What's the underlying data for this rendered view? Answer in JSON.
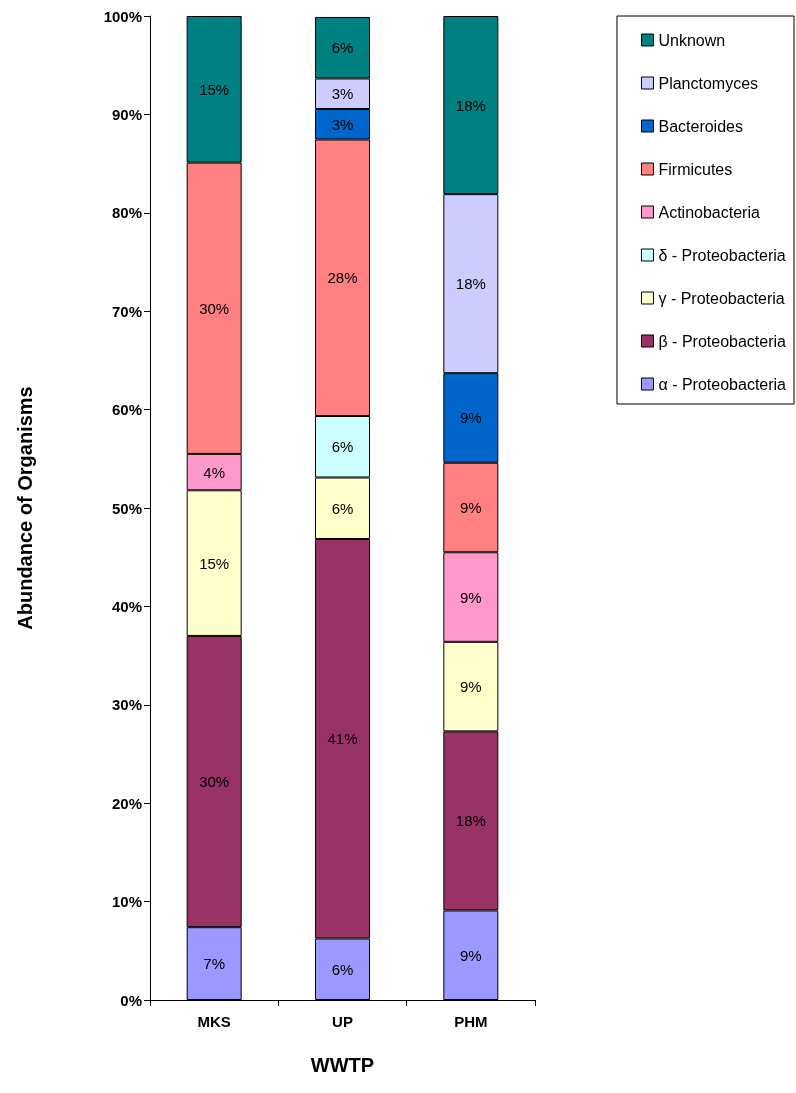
{
  "chart_data": {
    "type": "bar",
    "stacked": true,
    "xlabel": "WWTP",
    "ylabel": "Abundance of Organisms",
    "categories": [
      "MKS",
      "UP",
      "PHM"
    ],
    "series": [
      {
        "name": "α - Proteobacteria",
        "color": "#9999ff",
        "values": [
          7.4,
          6.25,
          9.1
        ],
        "value_labels": [
          "7%",
          "6%",
          "9%"
        ]
      },
      {
        "name": "β - Proteobacteria",
        "color": "#993366",
        "values": [
          29.6,
          40.6,
          18.2
        ],
        "value_labels": [
          "30%",
          "41%",
          "18%"
        ]
      },
      {
        "name": "γ - Proteobacteria",
        "color": "#ffffcc",
        "values": [
          14.8,
          6.25,
          9.1
        ],
        "value_labels": [
          "15%",
          "6%",
          "9%"
        ]
      },
      {
        "name": "δ - Proteobacteria",
        "color": "#ccffff",
        "values": [
          null,
          6.25,
          null
        ],
        "value_labels": [
          null,
          "6%",
          null
        ]
      },
      {
        "name": "Actinobacteria",
        "color": "#ff99cc",
        "values": [
          3.7,
          null,
          9.1
        ],
        "value_labels": [
          "4%",
          null,
          "9%"
        ]
      },
      {
        "name": "Firmicutes",
        "color": "#ff8080",
        "values": [
          29.6,
          28.1,
          9.1
        ],
        "value_labels": [
          "30%",
          "28%",
          "9%"
        ]
      },
      {
        "name": "Bacteroides",
        "color": "#0066cc",
        "values": [
          null,
          3.1,
          9.1
        ],
        "value_labels": [
          null,
          "3%",
          "9%"
        ]
      },
      {
        "name": "Planctomyces",
        "color": "#ccccff",
        "values": [
          null,
          3.1,
          18.2
        ],
        "value_labels": [
          null,
          "3%",
          "18%"
        ]
      },
      {
        "name": "Unknown",
        "color": "#008080",
        "values": [
          14.9,
          6.25,
          18.1
        ],
        "value_labels": [
          "15%",
          "6%",
          "18%"
        ]
      }
    ],
    "ylim": [
      0,
      100
    ],
    "yticks": [
      {
        "value": 0,
        "label": "0%"
      },
      {
        "value": 10,
        "label": "10%"
      },
      {
        "value": 20,
        "label": "20%"
      },
      {
        "value": 30,
        "label": "30%"
      },
      {
        "value": 40,
        "label": "40%"
      },
      {
        "value": 50,
        "label": "50%"
      },
      {
        "value": 60,
        "label": "60%"
      },
      {
        "value": 70,
        "label": "70%"
      },
      {
        "value": 80,
        "label": "80%"
      },
      {
        "value": 90,
        "label": "90%"
      },
      {
        "value": 100,
        "label": "100%"
      }
    ],
    "grid": false,
    "legend": "top right"
  }
}
